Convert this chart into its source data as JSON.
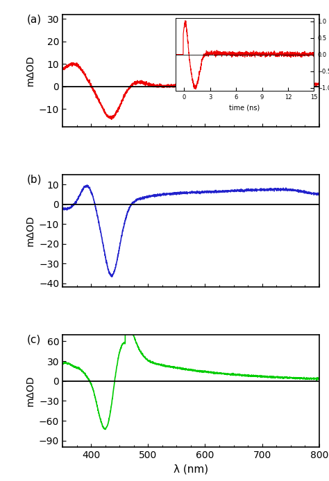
{
  "panel_a": {
    "label": "(a)",
    "color": "#ee0000",
    "xlim": [
      350,
      800
    ],
    "ylim": [
      -18,
      32
    ],
    "yticks": [
      -10,
      0,
      10,
      20,
      30
    ],
    "xticks": [
      400,
      500,
      600,
      700,
      800
    ],
    "ylabel": "mΔOD"
  },
  "panel_b": {
    "label": "(b)",
    "color": "#2222cc",
    "xlim": [
      350,
      800
    ],
    "ylim": [
      -42,
      15
    ],
    "yticks": [
      -40,
      -30,
      -20,
      -10,
      0,
      10
    ],
    "xticks": [
      400,
      500,
      600,
      700,
      800
    ],
    "ylabel": "mΔOD"
  },
  "panel_c": {
    "label": "(c)",
    "color": "#00cc00",
    "xlim": [
      350,
      800
    ],
    "ylim": [
      -100,
      70
    ],
    "yticks": [
      -90,
      -60,
      -30,
      0,
      30,
      60
    ],
    "xticks": [
      400,
      500,
      600,
      700,
      800
    ],
    "ylabel": "mΔOD",
    "xlabel": "λ (nm)"
  },
  "inset": {
    "color": "#ee0000",
    "xlim": [
      -1,
      15
    ],
    "ylim": [
      -1.1,
      1.1
    ],
    "xlabel": "time (ns)",
    "yticks": [
      -1.0,
      -0.5,
      0.0,
      0.5,
      1.0
    ],
    "xticks": [
      0,
      3,
      6,
      9,
      12,
      15
    ]
  },
  "background_color": "#ffffff",
  "linewidth": 1.2
}
